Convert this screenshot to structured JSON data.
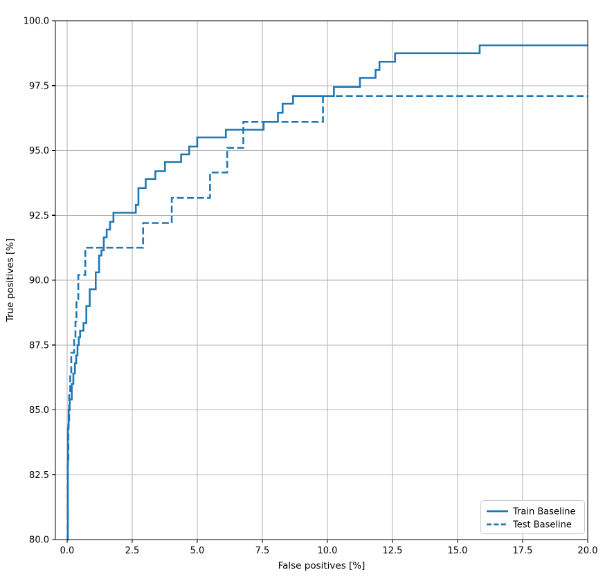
{
  "chart_data": {
    "type": "line",
    "subtype": "step-post-roc",
    "title": "",
    "xlabel": "False positives [%]",
    "ylabel": "True positives [%]",
    "xlim": [
      -0.45,
      20
    ],
    "ylim": [
      80,
      100
    ],
    "grid": true,
    "xticks": [
      0,
      2.5,
      5,
      7.5,
      10,
      12.5,
      15,
      17.5,
      20
    ],
    "xtick_labels": [
      "0.0",
      "2.5",
      "5.0",
      "7.5",
      "10.0",
      "12.5",
      "15.0",
      "17.5",
      "20.0"
    ],
    "yticks": [
      80,
      82.5,
      85,
      87.5,
      90,
      92.5,
      95,
      97.5,
      100
    ],
    "ytick_labels": [
      "80.0",
      "82.5",
      "85.0",
      "87.5",
      "90.0",
      "92.5",
      "95.0",
      "97.5",
      "100.0"
    ],
    "line_color": "#1f77b4",
    "grid_color": "#b2b2b2",
    "legend": {
      "position": "lower right"
    },
    "series": [
      {
        "name": "Train Baseline",
        "style": "solid",
        "points": [
          [
            0.0,
            80.0
          ],
          [
            0.03,
            84.3
          ],
          [
            0.06,
            85.0
          ],
          [
            0.1,
            85.4
          ],
          [
            0.18,
            86.0
          ],
          [
            0.24,
            86.4
          ],
          [
            0.3,
            86.8
          ],
          [
            0.35,
            87.1
          ],
          [
            0.4,
            87.5
          ],
          [
            0.45,
            87.8
          ],
          [
            0.5,
            88.05
          ],
          [
            0.63,
            88.35
          ],
          [
            0.74,
            89.0
          ],
          [
            0.87,
            89.65
          ],
          [
            1.1,
            90.3
          ],
          [
            1.23,
            90.95
          ],
          [
            1.32,
            91.15
          ],
          [
            1.41,
            91.65
          ],
          [
            1.52,
            91.95
          ],
          [
            1.65,
            92.25
          ],
          [
            1.78,
            92.6
          ],
          [
            2.64,
            92.9
          ],
          [
            2.74,
            93.55
          ],
          [
            3.02,
            93.9
          ],
          [
            3.39,
            94.2
          ],
          [
            3.76,
            94.55
          ],
          [
            4.38,
            94.85
          ],
          [
            4.69,
            95.15
          ],
          [
            5.0,
            95.5
          ],
          [
            6.1,
            95.8
          ],
          [
            7.55,
            96.1
          ],
          [
            8.1,
            96.45
          ],
          [
            8.28,
            96.8
          ],
          [
            8.68,
            97.1
          ],
          [
            10.25,
            97.45
          ],
          [
            11.25,
            97.8
          ],
          [
            11.85,
            98.1
          ],
          [
            12.0,
            98.42
          ],
          [
            12.6,
            98.75
          ],
          [
            15.85,
            99.05
          ],
          [
            20.0,
            99.05
          ]
        ]
      },
      {
        "name": "Test Baseline",
        "style": "dashed",
        "points": [
          [
            0.0,
            80.0
          ],
          [
            0.02,
            83.0
          ],
          [
            0.05,
            84.5
          ],
          [
            0.08,
            85.6
          ],
          [
            0.12,
            86.3
          ],
          [
            0.16,
            87.2
          ],
          [
            0.27,
            87.8
          ],
          [
            0.32,
            88.4
          ],
          [
            0.36,
            89.2
          ],
          [
            0.43,
            90.2
          ],
          [
            0.7,
            91.25
          ],
          [
            2.92,
            92.2
          ],
          [
            4.02,
            93.17
          ],
          [
            5.49,
            94.15
          ],
          [
            6.15,
            95.1
          ],
          [
            6.77,
            96.1
          ],
          [
            9.83,
            97.1
          ],
          [
            20.0,
            97.1
          ]
        ]
      }
    ]
  }
}
